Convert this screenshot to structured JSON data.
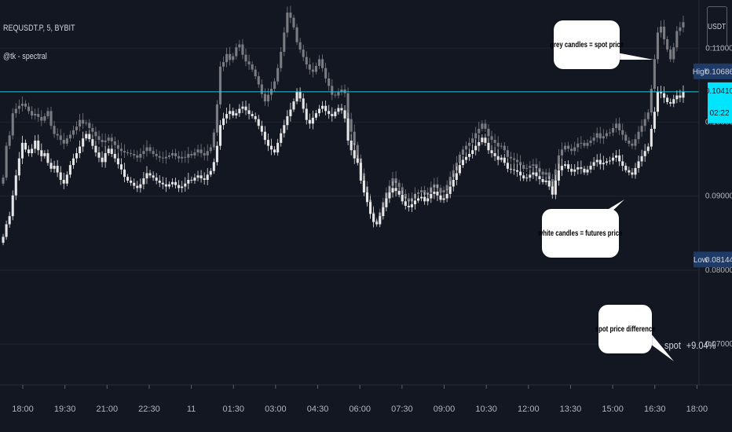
{
  "legend": {
    "symbol": "REQUSDT.P, 5, BYBIT",
    "indicator": "@tk - spectral"
  },
  "currency": "USDT",
  "colors": {
    "background": "#131722",
    "futures_candle": "#e6e6e6",
    "spot_candle": "#7a7c82",
    "price_line": "#26c6da",
    "high_low_label": "#1e3a66",
    "current_price_label": "#00e5ff"
  },
  "chart_data": {
    "type": "candlestick",
    "x_ticks": [
      "18:00",
      "19:30",
      "21:00",
      "22:30",
      "11",
      "01:30",
      "03:00",
      "04:30",
      "06:00",
      "07:30",
      "09:00",
      "10:30",
      "12:00",
      "13:30",
      "15:00",
      "16:30",
      "18:00"
    ],
    "y_ticks": [
      0.07,
      0.08,
      0.09,
      0.1,
      0.11
    ],
    "y_tick_labels": [
      "0.07000",
      "0.08000",
      "0.09000",
      "0.10000",
      "0.11000"
    ],
    "ylim": [
      0.0645,
      0.1165
    ],
    "high": {
      "label": "High",
      "value": "0.10686"
    },
    "low": {
      "label": "Low",
      "value": "0.08144"
    },
    "current": {
      "value": "0.10410",
      "countdown": "02:22"
    },
    "series": [
      {
        "name": "futures",
        "close": [
          0.0845,
          0.0862,
          0.0873,
          0.0901,
          0.0928,
          0.0951,
          0.0972,
          0.0963,
          0.0958,
          0.0964,
          0.0975,
          0.0962,
          0.0954,
          0.0958,
          0.0945,
          0.0937,
          0.0941,
          0.0932,
          0.0922,
          0.0917,
          0.0929,
          0.0942,
          0.0951,
          0.0958,
          0.0967,
          0.0978,
          0.0984,
          0.0977,
          0.0968,
          0.0959,
          0.0952,
          0.0946,
          0.0958,
          0.0964,
          0.0957,
          0.0951,
          0.0943,
          0.0936,
          0.0926,
          0.0921,
          0.0918,
          0.0914,
          0.0911,
          0.0916,
          0.0924,
          0.0931,
          0.0928,
          0.0925,
          0.0921,
          0.0918,
          0.0916,
          0.0913,
          0.0916,
          0.0919,
          0.0915,
          0.0911,
          0.0913,
          0.0917,
          0.0922,
          0.0921,
          0.0925,
          0.0928,
          0.0924,
          0.0922,
          0.0929,
          0.0934,
          0.0946,
          0.0968,
          0.0996,
          0.1005,
          0.1011,
          0.1015,
          0.1009,
          0.1012,
          0.1018,
          0.1021,
          0.1016,
          0.1011,
          0.1008,
          0.1004,
          0.0995,
          0.0987,
          0.0976,
          0.0968,
          0.0963,
          0.0959,
          0.0972,
          0.0985,
          0.0996,
          0.1008,
          0.1017,
          0.1028,
          0.1041,
          0.1032,
          0.1018,
          0.1003,
          0.0998,
          0.1006,
          0.1012,
          0.1018,
          0.1022,
          0.1015,
          0.1011,
          0.1008,
          0.1014,
          0.1019,
          0.1016,
          0.1005,
          0.0975,
          0.0962,
          0.0951,
          0.0945,
          0.0921,
          0.0905,
          0.0892,
          0.0876,
          0.0865,
          0.0862,
          0.0873,
          0.0885,
          0.0897,
          0.0905,
          0.0911,
          0.0907,
          0.0902,
          0.0893,
          0.0887,
          0.0885,
          0.0889,
          0.0894,
          0.0897,
          0.0899,
          0.0893,
          0.0897,
          0.0903,
          0.0906,
          0.0901,
          0.0895,
          0.0897,
          0.0903,
          0.0913,
          0.0922,
          0.0931,
          0.0942,
          0.0949,
          0.0953,
          0.0957,
          0.0962,
          0.0968,
          0.0973,
          0.0979,
          0.0972,
          0.0962,
          0.0958,
          0.0954,
          0.0949,
          0.0952,
          0.0945,
          0.0937,
          0.0936,
          0.0935,
          0.0933,
          0.0928,
          0.0924,
          0.0925,
          0.0929,
          0.0932,
          0.0927,
          0.0923,
          0.0919,
          0.0921,
          0.0913,
          0.0902,
          0.0921,
          0.0935,
          0.0941,
          0.0943,
          0.0937,
          0.0933,
          0.0936,
          0.0939,
          0.0937,
          0.0932,
          0.0936,
          0.0941,
          0.0946,
          0.0949,
          0.0943,
          0.0945,
          0.0947,
          0.0948,
          0.0952,
          0.0955,
          0.0947,
          0.0941,
          0.0935,
          0.0932,
          0.0929,
          0.0938,
          0.0947,
          0.0954,
          0.0961,
          0.0967,
          0.0991,
          0.1014,
          0.1041,
          0.1039,
          0.1033,
          0.1027,
          0.1025,
          0.1031,
          0.1036,
          0.1033,
          0.1041
        ],
        "color": "#e6e6e6"
      },
      {
        "name": "spot",
        "close": [
          0.0925,
          0.0968,
          0.0982,
          0.1012,
          0.1018,
          0.1022,
          0.1025,
          0.1021,
          0.1015,
          0.1009,
          0.1011,
          0.1007,
          0.1002,
          0.1008,
          0.1015,
          0.0995,
          0.0984,
          0.0982,
          0.0976,
          0.0971,
          0.0978,
          0.0983,
          0.0989,
          0.0994,
          0.1003,
          0.0998,
          0.0999,
          0.0992,
          0.0987,
          0.0981,
          0.0976,
          0.0973,
          0.0975,
          0.0979,
          0.0974,
          0.0969,
          0.0964,
          0.0961,
          0.0959,
          0.0958,
          0.0957,
          0.0955,
          0.0952,
          0.0957,
          0.0961,
          0.0966,
          0.0961,
          0.0957,
          0.0954,
          0.0952,
          0.0951,
          0.0953,
          0.0955,
          0.0958,
          0.0954,
          0.0951,
          0.0953,
          0.0952,
          0.0957,
          0.0955,
          0.0959,
          0.0963,
          0.0958,
          0.0955,
          0.0961,
          0.0966,
          0.0986,
          0.1024,
          0.1075,
          0.1081,
          0.1092,
          0.1084,
          0.1089,
          0.1101,
          0.1105,
          0.1091,
          0.1082,
          0.1078,
          0.1071,
          0.1062,
          0.1051,
          0.1038,
          0.1028,
          0.1037,
          0.1045,
          0.1055,
          0.1073,
          0.1095,
          0.1121,
          0.1148,
          0.1141,
          0.1128,
          0.1108,
          0.1098,
          0.1088,
          0.1078,
          0.1071,
          0.1068,
          0.1076,
          0.1085,
          0.1073,
          0.1059,
          0.1049,
          0.1037,
          0.1036,
          0.1041,
          0.1044,
          0.1039,
          0.1004,
          0.0987,
          0.0969,
          0.0951,
          0.0931,
          0.0913,
          0.0895,
          0.0878,
          0.0867,
          0.0865,
          0.0878,
          0.0892,
          0.0905,
          0.0914,
          0.0924,
          0.0918,
          0.0912,
          0.0903,
          0.0897,
          0.0893,
          0.0897,
          0.0903,
          0.0905,
          0.0908,
          0.0902,
          0.0905,
          0.0912,
          0.0916,
          0.0911,
          0.0905,
          0.0908,
          0.0915,
          0.0926,
          0.0935,
          0.0945,
          0.0956,
          0.0963,
          0.0968,
          0.0972,
          0.0978,
          0.0985,
          0.0991,
          0.0998,
          0.0991,
          0.0981,
          0.0976,
          0.0972,
          0.0967,
          0.0968,
          0.0962,
          0.0953,
          0.0951,
          0.0949,
          0.0946,
          0.0942,
          0.0937,
          0.0938,
          0.0941,
          0.0943,
          0.0938,
          0.0933,
          0.0929,
          0.0932,
          0.0923,
          0.0911,
          0.0936,
          0.0955,
          0.0963,
          0.0968,
          0.0964,
          0.0961,
          0.0966,
          0.0971,
          0.0972,
          0.0968,
          0.0972,
          0.0975,
          0.0979,
          0.0985,
          0.0978,
          0.0981,
          0.0985,
          0.0986,
          0.0992,
          0.0998,
          0.0989,
          0.0983,
          0.0975,
          0.0971,
          0.0968,
          0.0977,
          0.0987,
          0.0995,
          0.1004,
          0.1013,
          0.1045,
          0.1085,
          0.1121,
          0.1129,
          0.1112,
          0.1098,
          0.1085,
          0.1101,
          0.1123,
          0.1128,
          0.1135
        ],
        "color": "#7a7c82"
      }
    ],
    "annotations": [
      {
        "text": "grey candles = spot price"
      },
      {
        "text": "white candles = futures price"
      },
      {
        "text": "spot price difference"
      }
    ],
    "spot_readout": {
      "label": "spot",
      "value": "+9.04%"
    }
  }
}
